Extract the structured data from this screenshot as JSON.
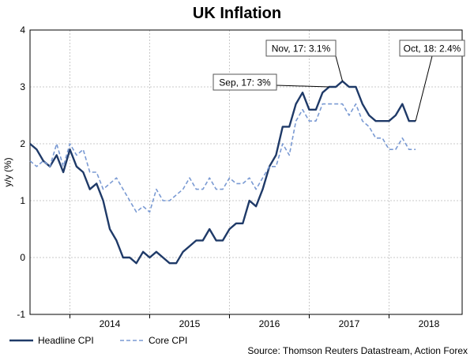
{
  "chart_data": {
    "type": "line",
    "title": "UK Inflation",
    "ylabel": "y/y (%)",
    "xlabel": "",
    "ylim": [
      -1,
      4
    ],
    "yticks": [
      -1,
      0,
      1,
      2,
      3,
      4
    ],
    "x_start": "2013-07",
    "x_end": "2018-12",
    "year_labels": [
      {
        "label": "2014",
        "month": "2014-07"
      },
      {
        "label": "2015",
        "month": "2015-07"
      },
      {
        "label": "2016",
        "month": "2016-07"
      },
      {
        "label": "2017",
        "month": "2017-07"
      },
      {
        "label": "2018",
        "month": "2018-07"
      }
    ],
    "grid": true,
    "legend_position": "bottom-left",
    "series": [
      {
        "name": "Headline CPI",
        "color": "#1f3a68",
        "dash": false,
        "points": [
          [
            "2013-07",
            2.0
          ],
          [
            "2013-08",
            1.9
          ],
          [
            "2013-09",
            1.7
          ],
          [
            "2013-10",
            1.6
          ],
          [
            "2013-11",
            1.8
          ],
          [
            "2013-12",
            1.5
          ],
          [
            "2014-01",
            1.9
          ],
          [
            "2014-02",
            1.6
          ],
          [
            "2014-03",
            1.5
          ],
          [
            "2014-04",
            1.2
          ],
          [
            "2014-05",
            1.3
          ],
          [
            "2014-06",
            1.0
          ],
          [
            "2014-07",
            0.5
          ],
          [
            "2014-08",
            0.3
          ],
          [
            "2014-09",
            0.0
          ],
          [
            "2014-10",
            0.0
          ],
          [
            "2014-11",
            -0.1
          ],
          [
            "2014-12",
            0.1
          ],
          [
            "2015-01",
            0.0
          ],
          [
            "2015-02",
            0.1
          ],
          [
            "2015-03",
            0.0
          ],
          [
            "2015-04",
            -0.1
          ],
          [
            "2015-05",
            -0.1
          ],
          [
            "2015-06",
            0.1
          ],
          [
            "2015-07",
            0.2
          ],
          [
            "2015-08",
            0.3
          ],
          [
            "2015-09",
            0.3
          ],
          [
            "2015-10",
            0.5
          ],
          [
            "2015-11",
            0.3
          ],
          [
            "2015-12",
            0.3
          ],
          [
            "2016-01",
            0.5
          ],
          [
            "2016-02",
            0.6
          ],
          [
            "2016-03",
            0.6
          ],
          [
            "2016-04",
            1.0
          ],
          [
            "2016-05",
            0.9
          ],
          [
            "2016-06",
            1.2
          ],
          [
            "2016-07",
            1.6
          ],
          [
            "2016-08",
            1.8
          ],
          [
            "2016-09",
            2.3
          ],
          [
            "2016-10",
            2.3
          ],
          [
            "2016-11",
            2.7
          ],
          [
            "2016-12",
            2.9
          ],
          [
            "2017-01",
            2.6
          ],
          [
            "2017-02",
            2.6
          ],
          [
            "2017-03",
            2.9
          ],
          [
            "2017-04",
            3.0
          ],
          [
            "2017-05",
            3.0
          ],
          [
            "2017-06",
            3.1
          ],
          [
            "2017-07",
            3.0
          ],
          [
            "2017-08",
            3.0
          ],
          [
            "2017-09",
            2.7
          ],
          [
            "2017-10",
            2.5
          ],
          [
            "2017-11",
            2.4
          ],
          [
            "2017-12",
            2.4
          ],
          [
            "2018-01",
            2.4
          ],
          [
            "2018-02",
            2.5
          ],
          [
            "2018-03",
            2.7
          ],
          [
            "2018-04",
            2.4
          ],
          [
            "2018-05",
            2.4
          ]
        ]
      },
      {
        "name": "Core CPI",
        "color": "#7a9ad3",
        "dash": true,
        "points": [
          [
            "2013-07",
            1.7
          ],
          [
            "2013-08",
            1.6
          ],
          [
            "2013-09",
            1.7
          ],
          [
            "2013-10",
            1.6
          ],
          [
            "2013-11",
            2.0
          ],
          [
            "2013-12",
            1.6
          ],
          [
            "2014-01",
            2.0
          ],
          [
            "2014-02",
            1.8
          ],
          [
            "2014-03",
            1.9
          ],
          [
            "2014-04",
            1.5
          ],
          [
            "2014-05",
            1.5
          ],
          [
            "2014-06",
            1.2
          ],
          [
            "2014-07",
            1.3
          ],
          [
            "2014-08",
            1.4
          ],
          [
            "2014-09",
            1.2
          ],
          [
            "2014-10",
            1.0
          ],
          [
            "2014-11",
            0.8
          ],
          [
            "2014-12",
            0.9
          ],
          [
            "2015-01",
            0.8
          ],
          [
            "2015-02",
            1.2
          ],
          [
            "2015-03",
            1.0
          ],
          [
            "2015-04",
            1.0
          ],
          [
            "2015-05",
            1.1
          ],
          [
            "2015-06",
            1.2
          ],
          [
            "2015-07",
            1.4
          ],
          [
            "2015-08",
            1.2
          ],
          [
            "2015-09",
            1.2
          ],
          [
            "2015-10",
            1.4
          ],
          [
            "2015-11",
            1.2
          ],
          [
            "2015-12",
            1.2
          ],
          [
            "2016-01",
            1.4
          ],
          [
            "2016-02",
            1.3
          ],
          [
            "2016-03",
            1.3
          ],
          [
            "2016-04",
            1.4
          ],
          [
            "2016-05",
            1.2
          ],
          [
            "2016-06",
            1.4
          ],
          [
            "2016-07",
            1.6
          ],
          [
            "2016-08",
            1.6
          ],
          [
            "2016-09",
            2.0
          ],
          [
            "2016-10",
            1.8
          ],
          [
            "2016-11",
            2.4
          ],
          [
            "2016-12",
            2.6
          ],
          [
            "2017-01",
            2.4
          ],
          [
            "2017-02",
            2.4
          ],
          [
            "2017-03",
            2.7
          ],
          [
            "2017-04",
            2.7
          ],
          [
            "2017-05",
            2.7
          ],
          [
            "2017-06",
            2.7
          ],
          [
            "2017-07",
            2.5
          ],
          [
            "2017-08",
            2.7
          ],
          [
            "2017-09",
            2.4
          ],
          [
            "2017-10",
            2.3
          ],
          [
            "2017-11",
            2.1
          ],
          [
            "2017-12",
            2.1
          ],
          [
            "2018-01",
            1.9
          ],
          [
            "2018-02",
            1.9
          ],
          [
            "2018-03",
            2.1
          ],
          [
            "2018-04",
            1.9
          ],
          [
            "2018-05",
            1.9
          ]
        ]
      }
    ],
    "annotations": [
      {
        "text": "Nov, 17: 3.1%",
        "month": "2017-06",
        "value": 3.1
      },
      {
        "text": "Sep, 17: 3%",
        "month": "2017-04",
        "value": 3.0
      },
      {
        "text": "Oct, 18: 2.4%",
        "month": "2018-05",
        "value": 2.4
      }
    ]
  },
  "source_text": "Source: Thomson Reuters Datastream, Action Forex"
}
